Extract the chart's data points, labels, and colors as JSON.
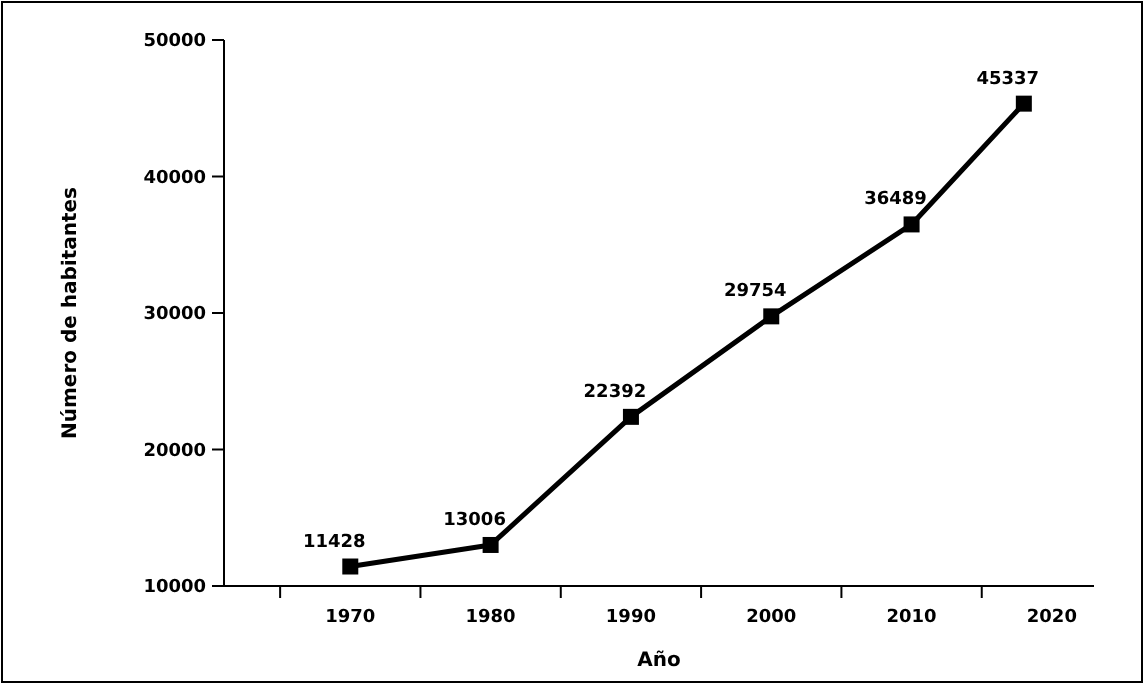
{
  "chart_data": {
    "type": "line",
    "xlabel": "Año",
    "ylabel": "Número de habitantes",
    "x": [
      1970,
      1980,
      1990,
      2000,
      2010,
      2018
    ],
    "series": [
      {
        "color": "#000000",
        "values": [
          11428,
          13006,
          22392,
          29754,
          36489,
          45337
        ]
      }
    ],
    "xlim": [
      1961,
      2023
    ],
    "xticks": [
      {
        "value": 1965,
        "label": null
      },
      1970,
      {
        "value": 1975,
        "label": null
      },
      1980,
      {
        "value": 1985,
        "label": null
      },
      1990,
      {
        "value": 1995,
        "label": null
      },
      2000,
      {
        "value": 2005,
        "label": null
      },
      2010,
      {
        "value": 2015,
        "label": null
      },
      2020
    ],
    "ylim": [
      10000,
      50000
    ],
    "yticks": [
      10000,
      20000,
      30000,
      40000,
      50000
    ],
    "data_labels": true,
    "marker": "square",
    "line_style": "solid"
  }
}
